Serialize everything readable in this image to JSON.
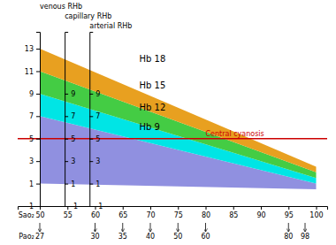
{
  "chart_data": {
    "type": "area",
    "background_color": "#ffffff",
    "xlim": [
      46,
      102
    ],
    "ylim": [
      -1,
      14.5
    ],
    "x": [
      50,
      100
    ],
    "xlabel": "Sao₂",
    "xticks": [
      50,
      55,
      60,
      65,
      70,
      75,
      80,
      85,
      90,
      95,
      100
    ],
    "series": [
      {
        "color": "#9090e0",
        "lower": [
          1.0,
          0.5
        ],
        "values": [
          7.0,
          1.0
        ]
      },
      {
        "color": "#00e5e5",
        "lower": [
          7.0,
          1.0
        ],
        "values": [
          9.0,
          1.5
        ]
      },
      {
        "color": "#44cc44",
        "lower": [
          9.0,
          1.5
        ],
        "values": [
          11.0,
          2.0
        ]
      },
      {
        "color": "#e8a020",
        "lower": [
          11.0,
          2.0
        ],
        "values": [
          13.0,
          2.5
        ]
      }
    ],
    "y_axes": [
      {
        "label": "venous RHb",
        "x": 50,
        "ticks": [
          -1,
          1,
          3,
          5,
          7,
          9,
          11,
          13
        ]
      },
      {
        "label": "capillary RHb",
        "x": 54.5,
        "ticks": [
          -1,
          1,
          3,
          5,
          7,
          9
        ]
      },
      {
        "label": "arterial RHb",
        "x": 59.0,
        "ticks": [
          -1,
          1,
          3,
          5,
          7,
          9
        ]
      }
    ],
    "reference_line": {
      "value": 5,
      "label": "Central cyanosis",
      "color": "#cc0000",
      "label_x": 80
    },
    "annotations": [
      {
        "text": "Hb 18",
        "x": 68,
        "y": 11.8
      },
      {
        "text": "Hb 15",
        "x": 68,
        "y": 9.5
      },
      {
        "text": "Hb 12",
        "x": 68,
        "y": 7.5
      },
      {
        "text": "Hb 9",
        "x": 68,
        "y": 5.8
      }
    ],
    "pao2_label": "Pao₂",
    "pao2_x": [
      50,
      60,
      65,
      70,
      75,
      80,
      95,
      98
    ],
    "pao2_values": [
      27,
      30,
      35,
      40,
      50,
      60,
      80,
      98
    ]
  }
}
